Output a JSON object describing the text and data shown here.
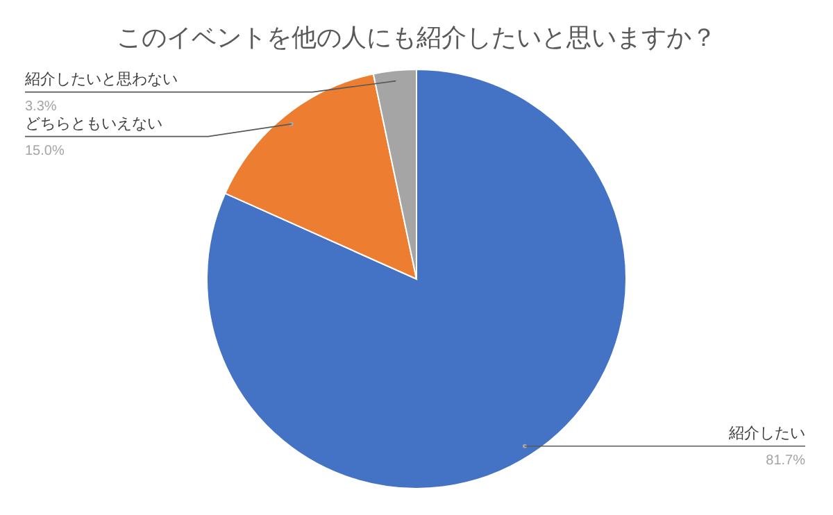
{
  "chart_data": {
    "type": "pie",
    "title": "このイベントを他の人にも紹介したいと思いますか？",
    "categories": [
      "紹介したい",
      "どちらともいえない",
      "紹介したいと思わない"
    ],
    "values": [
      81.7,
      15.0,
      3.3
    ],
    "value_labels": [
      "81.7%",
      "15.0%",
      "3.3%"
    ],
    "colors": [
      "#4472c4",
      "#ed7d31",
      "#a5a5a5"
    ]
  }
}
